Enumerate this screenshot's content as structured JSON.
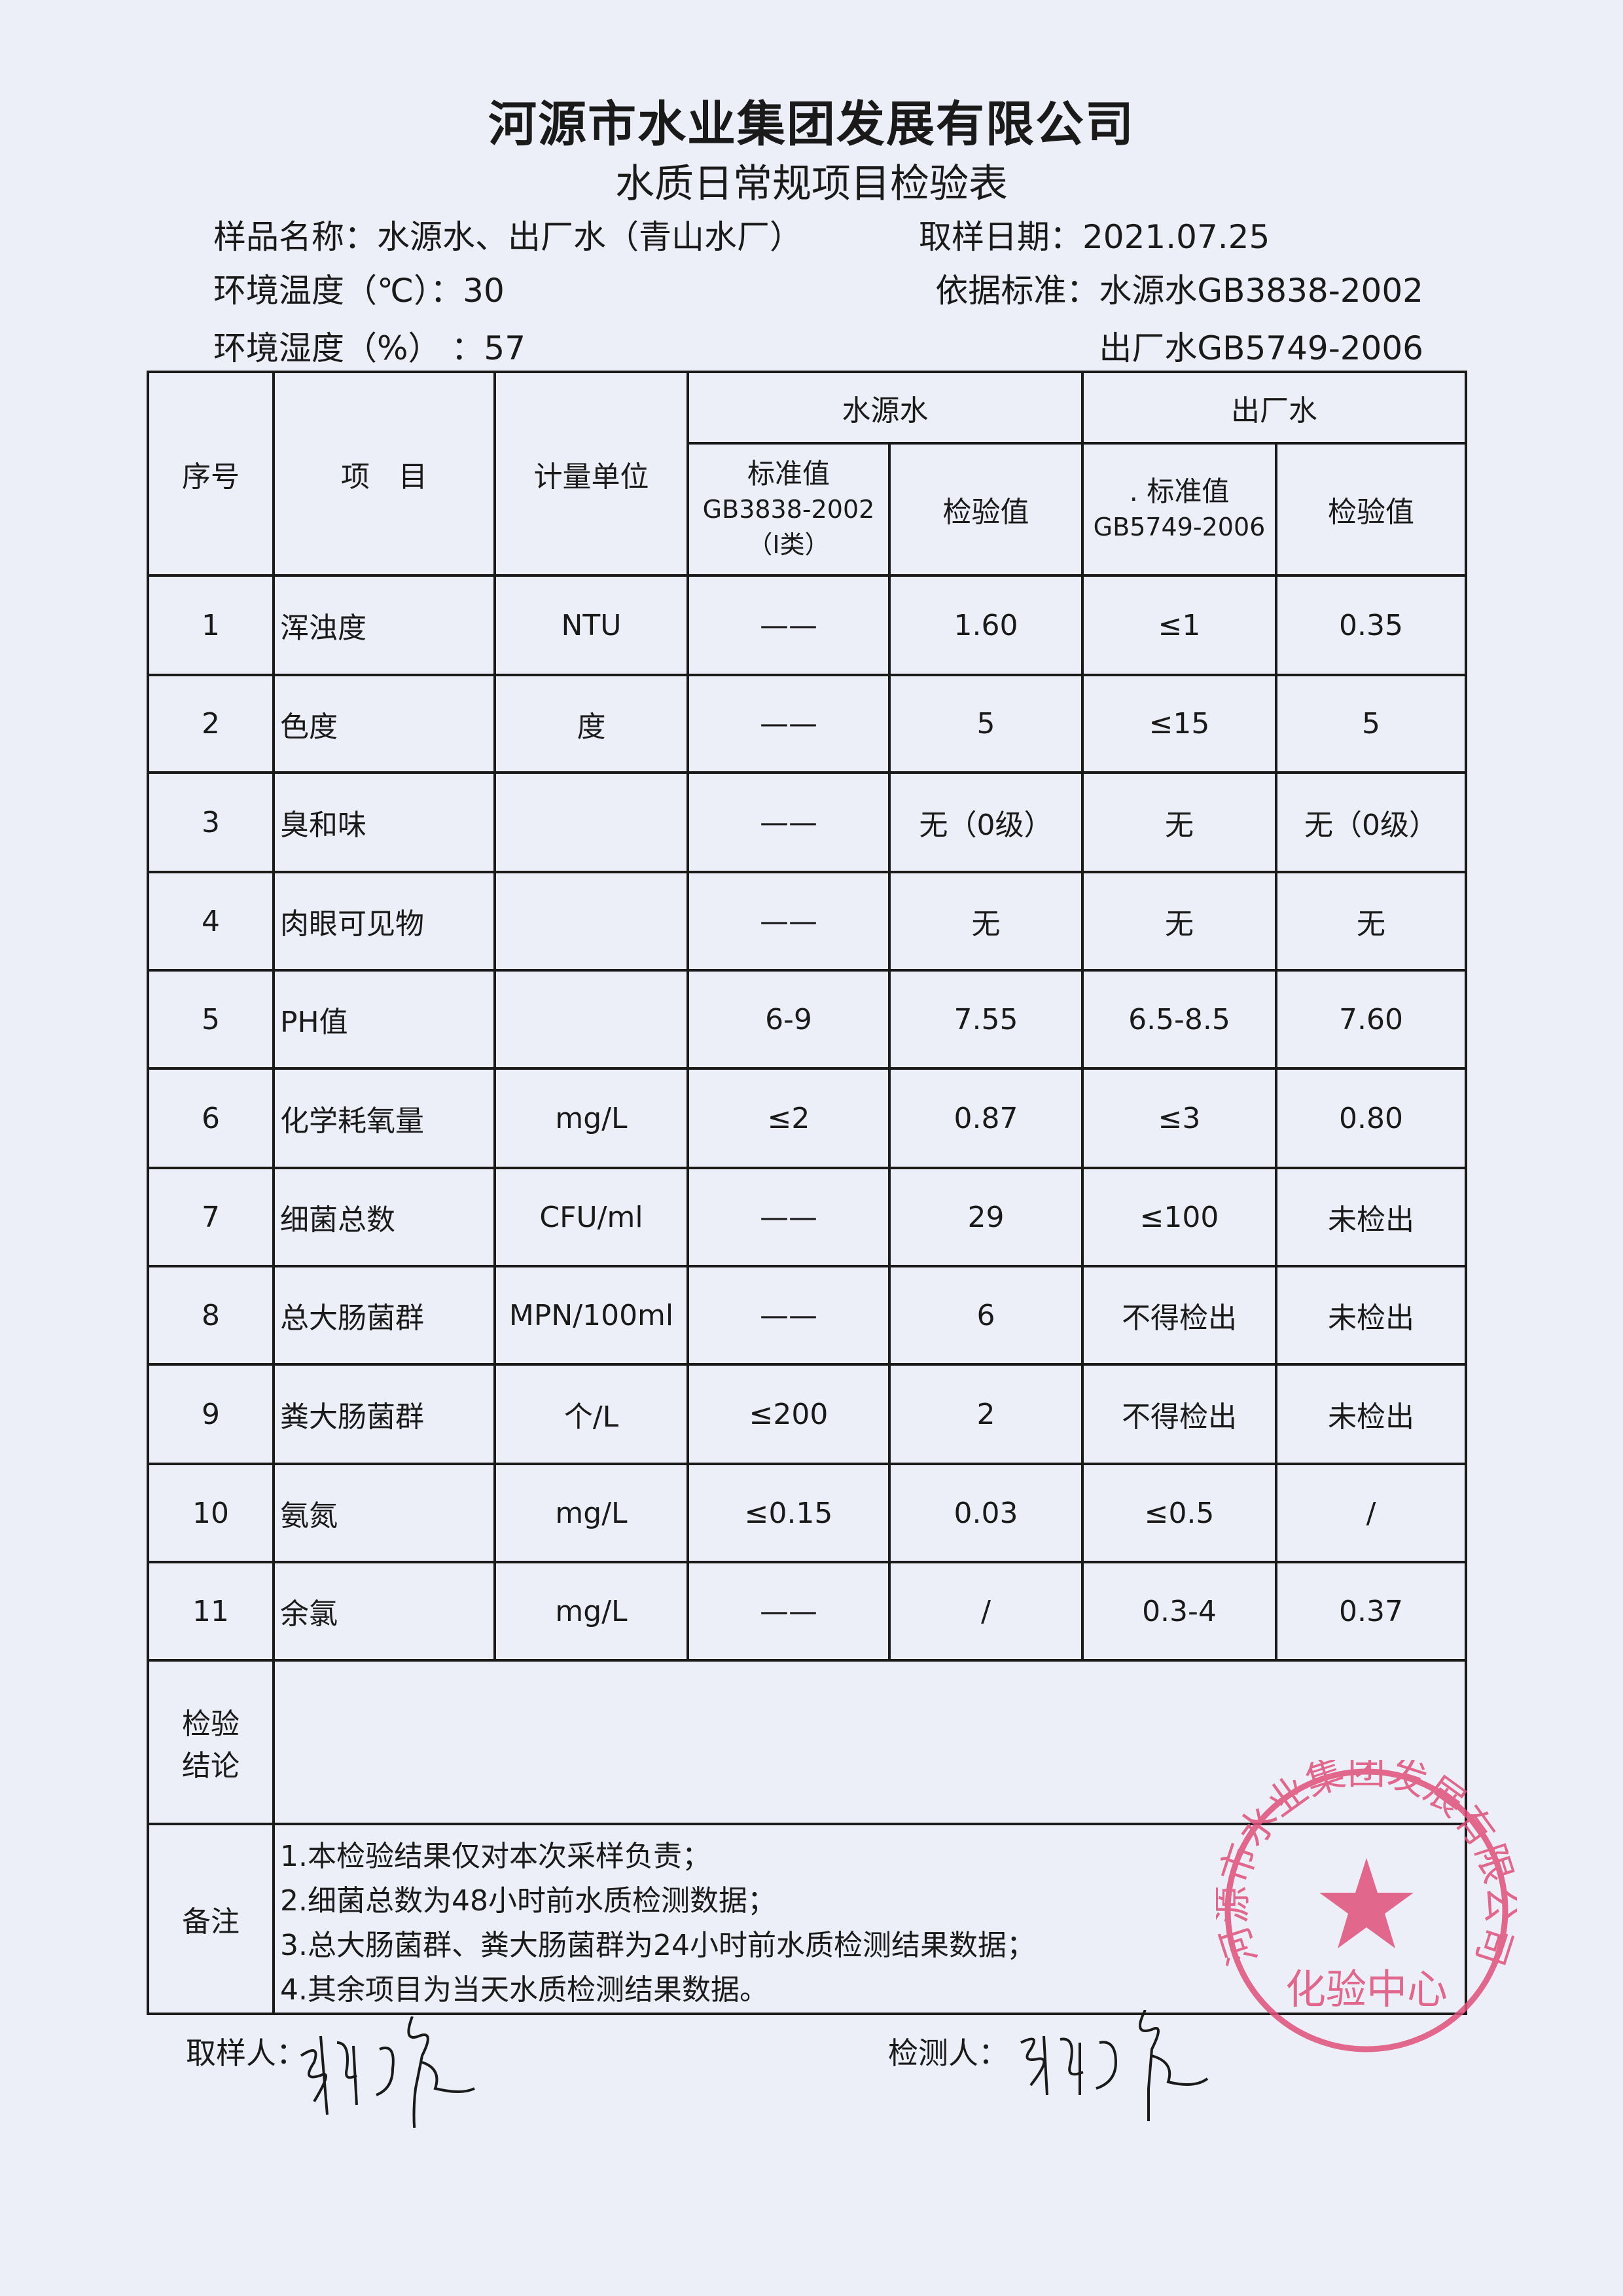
{
  "header": {
    "company": "河源市水业集团发展有限公司",
    "form_title": "水质日常规项目检验表"
  },
  "info": {
    "sample_name": "样品名称：水源水、出厂水（青山水厂）",
    "sample_date": "取样日期：2021.07.25",
    "temperature": "环境温度（℃）：30",
    "standard_1": "依据标准：水源水GB3838-2002",
    "humidity": "环境湿度（%）  ：57",
    "standard_2": "出厂水GB5749-2006"
  },
  "table": {
    "headers": {
      "index": "序号",
      "item": "项　目",
      "unit": "计量单位",
      "source_water": "水源水",
      "finished_water": "出厂水",
      "source_standard": "标准值",
      "source_standard_code": "GB3838-2002",
      "source_standard_class": "（Ⅰ类）",
      "source_test": "检验值",
      "finished_standard": ". 标准值",
      "finished_standard_code": "GB5749-2006",
      "finished_test": "检验值"
    },
    "rows": [
      {
        "no": "1",
        "item": "浑浊度",
        "unit": "NTU",
        "src_std": "——",
        "src_val": "1.60",
        "fin_std": "≤1",
        "fin_val": "0.35"
      },
      {
        "no": "2",
        "item": "色度",
        "unit": "度",
        "src_std": "——",
        "src_val": "5",
        "fin_std": "≤15",
        "fin_val": "5"
      },
      {
        "no": "3",
        "item": "臭和味",
        "unit": "",
        "src_std": "——",
        "src_val": "无（0级）",
        "fin_std": "无",
        "fin_val": "无（0级）"
      },
      {
        "no": "4",
        "item": "肉眼可见物",
        "unit": "",
        "src_std": "——",
        "src_val": "无",
        "fin_std": "无",
        "fin_val": "无"
      },
      {
        "no": "5",
        "item": "PH值",
        "unit": "",
        "src_std": "6-9",
        "src_val": "7.55",
        "fin_std": "6.5-8.5",
        "fin_val": "7.60"
      },
      {
        "no": "6",
        "item": "化学耗氧量",
        "unit": "mg/L",
        "src_std": "≤2",
        "src_val": "0.87",
        "fin_std": "≤3",
        "fin_val": "0.80"
      },
      {
        "no": "7",
        "item": "细菌总数",
        "unit": "CFU/ml",
        "src_std": "——",
        "src_val": "29",
        "fin_std": "≤100",
        "fin_val": "未检出"
      },
      {
        "no": "8",
        "item": "总大肠菌群",
        "unit": "MPN/100ml",
        "src_std": "——",
        "src_val": "6",
        "fin_std": "不得检出",
        "fin_val": "未检出"
      },
      {
        "no": "9",
        "item": "粪大肠菌群",
        "unit": "个/L",
        "src_std": "≤200",
        "src_val": "2",
        "fin_std": "不得检出",
        "fin_val": "未检出"
      },
      {
        "no": "10",
        "item": "氨氮",
        "unit": "mg/L",
        "src_std": "≤0.15",
        "src_val": "0.03",
        "fin_std": "≤0.5",
        "fin_val": "/"
      },
      {
        "no": "11",
        "item": "余氯",
        "unit": "mg/L",
        "src_std": "——",
        "src_val": "/",
        "fin_std": "0.3-4",
        "fin_val": "0.37"
      }
    ],
    "conclusion_label_1": "检验",
    "conclusion_label_2": "结论",
    "conclusion": "",
    "notes_label": "备注",
    "notes": [
      "1.本检验结果仅对本次采样负责；",
      "2.细菌总数为48小时前水质检测数据；",
      "3.总大肠菌群、粪大肠菌群为24小时前水质检测结果数据；",
      "4.其余项目为当天水质检测结果数据。"
    ]
  },
  "signatures": {
    "sampler_label": "取样人：",
    "tester_label": "检测人："
  },
  "stamp": {
    "ring_text": "河源市水业集团发展有限公司",
    "center_text": "化验中心",
    "color": "#e0507a"
  }
}
